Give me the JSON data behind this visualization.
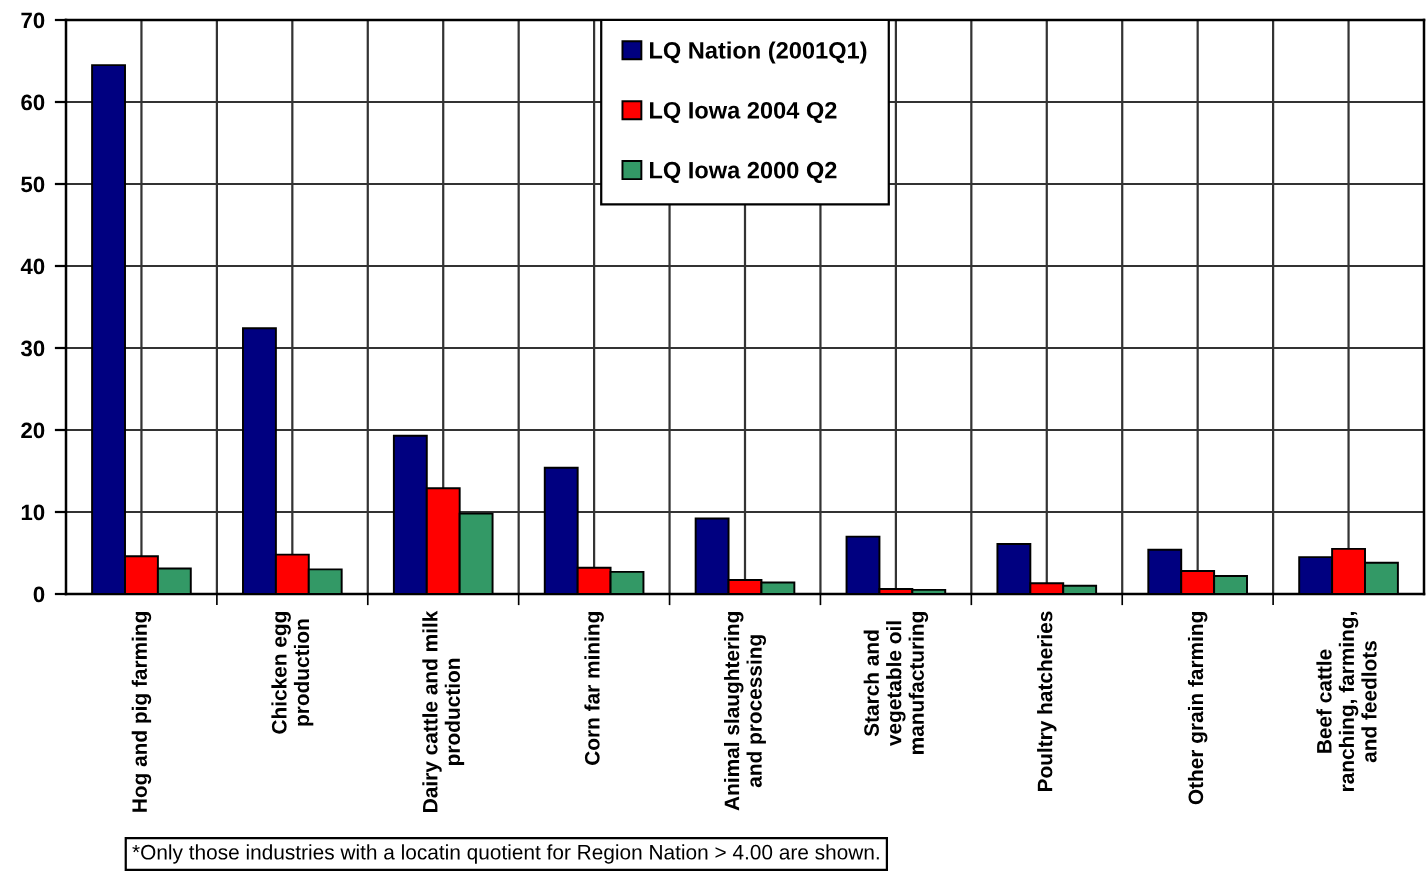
{
  "chart_data": {
    "type": "bar",
    "categories": [
      "Hog and pig farming",
      "Chicken egg\nproduction",
      "Dairy cattle and milk\nproduction",
      "Corn far mining",
      "Animal slaughtering\nand processing",
      "Starch and\nvegetable oil\nmanufacturing",
      "Poultry hatcheries",
      "Other grain farming",
      "Beef cattle\nranching, farming,\nand feedlots"
    ],
    "series": [
      {
        "name": "LQ Nation (2001Q1)",
        "color": "#000080",
        "values": [
          64.5,
          32.4,
          19.3,
          15.4,
          9.2,
          7.0,
          6.1,
          5.4,
          4.5
        ]
      },
      {
        "name": "LQ Iowa 2004 Q2",
        "color": "#ff0000",
        "values": [
          4.6,
          4.8,
          12.9,
          3.2,
          1.7,
          0.6,
          1.3,
          2.8,
          5.5
        ]
      },
      {
        "name": "LQ Iowa 2000 Q2",
        "color": "#339966",
        "values": [
          3.1,
          3.0,
          9.8,
          2.7,
          1.4,
          0.5,
          1.0,
          2.2,
          3.8
        ]
      }
    ],
    "ylim": [
      0,
      70
    ],
    "yticks": [
      0,
      10,
      20,
      30,
      40,
      50,
      60,
      70
    ],
    "grid": true,
    "legend": "top",
    "annotations": [
      "*Only those industries with a locatin quotient for Region Nation > 4.00 are shown."
    ]
  }
}
